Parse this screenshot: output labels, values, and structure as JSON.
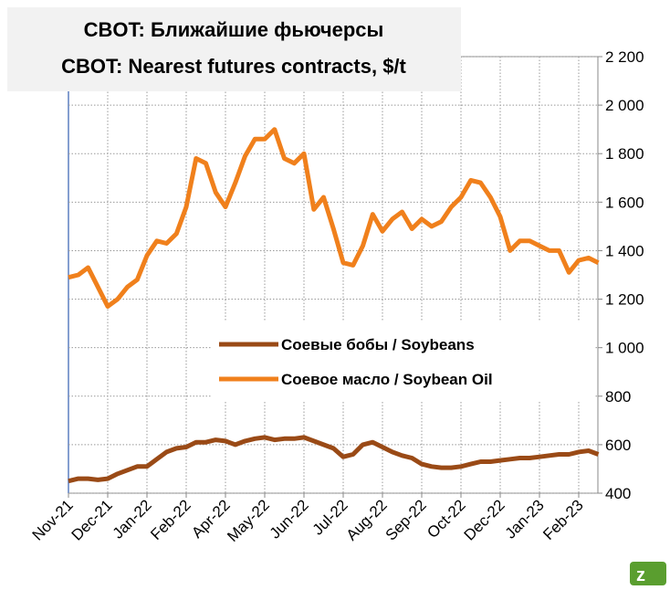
{
  "chart_data": {
    "type": "line",
    "title": "CBOT: Ближайшие фьючерсы",
    "subtitle": "CBOT: Nearest futures contracts, $/t",
    "categories": [
      "Nov-21",
      null,
      null,
      null,
      "Dec-21",
      null,
      null,
      null,
      "Jan-22",
      null,
      null,
      null,
      "Feb-22",
      null,
      null,
      null,
      "Apr-22",
      null,
      null,
      null,
      "May-22",
      null,
      null,
      null,
      "Jun-22",
      null,
      null,
      null,
      "Jul-22",
      null,
      null,
      null,
      "Aug-22",
      null,
      null,
      null,
      "Sep-22",
      null,
      null,
      null,
      "Oct-22",
      null,
      null,
      null,
      "Dec-22",
      null,
      null,
      null,
      "Jan-23",
      null,
      null,
      null,
      "Feb-23",
      null,
      null
    ],
    "series": [
      {
        "name": "Соевые бобы / Soybeans",
        "color": "#9a4a16",
        "values": [
          450,
          460,
          460,
          455,
          460,
          480,
          495,
          510,
          510,
          540,
          570,
          585,
          590,
          610,
          610,
          620,
          615,
          600,
          615,
          625,
          630,
          620,
          625,
          625,
          630,
          615,
          600,
          585,
          550,
          560,
          600,
          610,
          590,
          570,
          555,
          545,
          520,
          510,
          505,
          505,
          510,
          520,
          530,
          530,
          535,
          540,
          545,
          545,
          550,
          555,
          560,
          560,
          570,
          575,
          560
        ]
      },
      {
        "name": "Соевое масло / Soybean Oil",
        "color": "#f0801c",
        "values": [
          1290,
          1300,
          1330,
          1250,
          1170,
          1200,
          1250,
          1280,
          1380,
          1440,
          1430,
          1470,
          1580,
          1780,
          1760,
          1640,
          1580,
          1680,
          1790,
          1860,
          1860,
          1900,
          1780,
          1760,
          1800,
          1570,
          1620,
          1490,
          1350,
          1340,
          1420,
          1550,
          1480,
          1530,
          1560,
          1490,
          1530,
          1500,
          1520,
          1580,
          1620,
          1690,
          1680,
          1620,
          1540,
          1400,
          1440,
          1440,
          1420,
          1400,
          1400,
          1310,
          1360,
          1370,
          1350
        ]
      }
    ],
    "ylim": [
      400,
      2200
    ],
    "yticks": [
      400,
      600,
      800,
      {
        "value": 1000,
        "label": "1 000"
      },
      {
        "value": 1200,
        "label": "1 200"
      },
      {
        "value": 1400,
        "label": "1 400"
      },
      {
        "value": 1600,
        "label": "1 600"
      },
      {
        "value": 1800,
        "label": "1 800"
      },
      {
        "value": 2000,
        "label": "2 000"
      },
      {
        "value": 2200,
        "label": "2 200"
      }
    ],
    "grid": true
  }
}
